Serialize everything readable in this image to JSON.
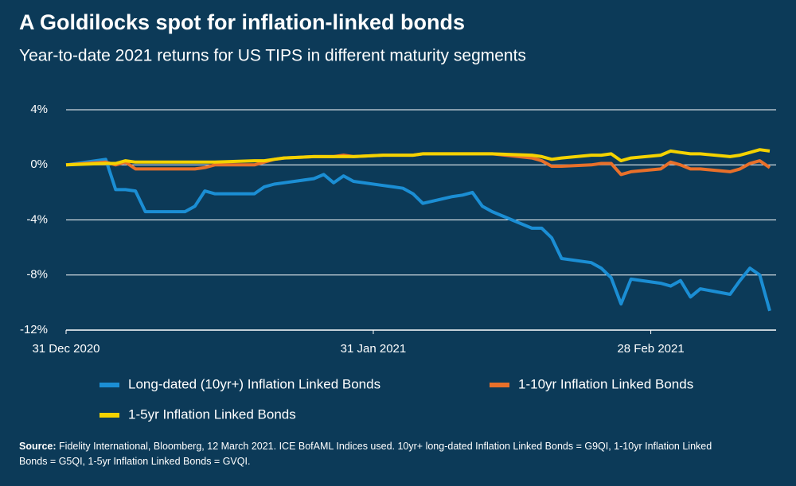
{
  "chart_data": {
    "type": "line",
    "title": "A Goldilocks spot for inflation-linked bonds",
    "subtitle": "Year-to-date 2021 returns for US TIPS in different maturity segments",
    "x": [
      "2020-12-31",
      "2021-01-04",
      "2021-01-05",
      "2021-01-06",
      "2021-01-07",
      "2021-01-08",
      "2021-01-11",
      "2021-01-12",
      "2021-01-13",
      "2021-01-14",
      "2021-01-15",
      "2021-01-19",
      "2021-01-20",
      "2021-01-21",
      "2021-01-22",
      "2021-01-25",
      "2021-01-26",
      "2021-01-27",
      "2021-01-28",
      "2021-01-29",
      "2021-02-01",
      "2021-02-02",
      "2021-02-03",
      "2021-02-04",
      "2021-02-05",
      "2021-02-08",
      "2021-02-09",
      "2021-02-10",
      "2021-02-11",
      "2021-02-12",
      "2021-02-16",
      "2021-02-17",
      "2021-02-18",
      "2021-02-19",
      "2021-02-22",
      "2021-02-23",
      "2021-02-24",
      "2021-02-25",
      "2021-02-26",
      "2021-03-01",
      "2021-03-02",
      "2021-03-03",
      "2021-03-04",
      "2021-03-05",
      "2021-03-08",
      "2021-03-09",
      "2021-03-10",
      "2021-03-11",
      "2021-03-12"
    ],
    "series": [
      {
        "name": "Long-dated (10yr+) Inflation Linked Bonds",
        "color": "#1b8ed4",
        "values": [
          0,
          0.4,
          -1.8,
          -1.8,
          -1.9,
          -3.4,
          -3.4,
          -3.4,
          -3.0,
          -1.9,
          -2.1,
          -2.1,
          -1.6,
          -1.4,
          -1.3,
          -1.0,
          -0.7,
          -1.3,
          -0.8,
          -1.2,
          -1.5,
          -1.6,
          -1.7,
          -2.1,
          -2.8,
          -2.3,
          -2.2,
          -2.0,
          -3.0,
          -3.4,
          -4.6,
          -4.6,
          -5.3,
          -6.8,
          -7.1,
          -7.5,
          -8.2,
          -10.1,
          -8.3,
          -8.6,
          -8.8,
          -8.4,
          -9.6,
          -9.0,
          -9.4,
          -8.4,
          -7.5,
          -8.0,
          -10.6
        ]
      },
      {
        "name": "1-10yr Inflation Linked Bonds",
        "color": "#e8702a",
        "values": [
          0,
          0.2,
          0,
          0.2,
          -0.3,
          -0.3,
          -0.3,
          -0.3,
          -0.3,
          -0.2,
          0,
          0,
          0.2,
          0.4,
          0.5,
          0.6,
          0.6,
          0.6,
          0.7,
          0.6,
          0.7,
          0.7,
          0.7,
          0.7,
          0.8,
          0.8,
          0.8,
          0.8,
          0.8,
          0.8,
          0.5,
          0.3,
          -0.1,
          -0.1,
          0,
          0.1,
          0.1,
          -0.7,
          -0.5,
          -0.3,
          0.2,
          0,
          -0.3,
          -0.3,
          -0.5,
          -0.3,
          0.1,
          0.3,
          -0.2
        ]
      },
      {
        "name": "1-5yr Inflation Linked Bonds",
        "color": "#f4d200",
        "values": [
          0,
          0.1,
          0.1,
          0.3,
          0.2,
          0.2,
          0.2,
          0.2,
          0.2,
          0.2,
          0.2,
          0.3,
          0.3,
          0.4,
          0.5,
          0.6,
          0.6,
          0.6,
          0.6,
          0.6,
          0.7,
          0.7,
          0.7,
          0.7,
          0.8,
          0.8,
          0.8,
          0.8,
          0.8,
          0.8,
          0.7,
          0.6,
          0.4,
          0.5,
          0.7,
          0.7,
          0.8,
          0.3,
          0.5,
          0.7,
          1.0,
          0.9,
          0.8,
          0.8,
          0.6,
          0.7,
          0.9,
          1.1,
          1.0
        ]
      }
    ],
    "xlim": [
      "2020-12-31",
      "2021-03-12"
    ],
    "xticks": [
      {
        "value": "2020-12-31",
        "label": "31 Dec 2020"
      },
      {
        "value": "2021-01-31",
        "label": "31 Jan 2021"
      },
      {
        "value": "2021-02-28",
        "label": "28 Feb 2021"
      }
    ],
    "ylim": [
      -12,
      4
    ],
    "yticks": [
      {
        "value": 4,
        "label": "4%"
      },
      {
        "value": 0,
        "label": "0%"
      },
      {
        "value": -4,
        "label": "-4%"
      },
      {
        "value": -8,
        "label": "-8%"
      },
      {
        "value": -12,
        "label": "-12%"
      }
    ],
    "grid": true,
    "source_label": "Source:",
    "source_text": "Fidelity International, Bloomberg, 12 March 2021. ICE BofAML Indices used. 10yr+ long-dated Inflation Linked Bonds = G9QI, 1-10yr Inflation Linked Bonds = G5QI, 1-5yr Inflation Linked Bonds = GVQI."
  }
}
